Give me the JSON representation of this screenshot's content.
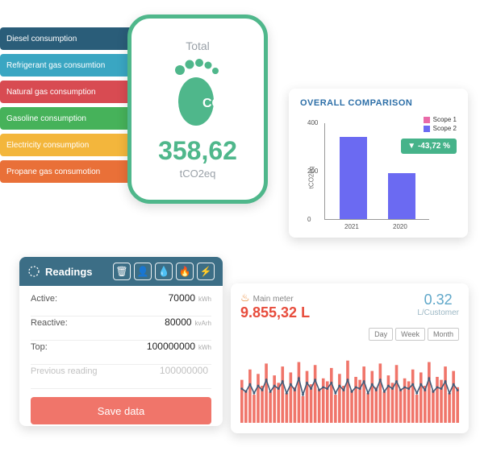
{
  "co2": {
    "total_label": "Total",
    "value": "358,62",
    "unit": "tCO2eq",
    "icon_label": "CO₂",
    "foot_color": "#4fb78b",
    "categories": [
      {
        "label": "Diesel consumption",
        "color": "#2a5d79"
      },
      {
        "label": "Refrigerant gas consumtion",
        "color": "#3aa6c2"
      },
      {
        "label": "Natural gas consumption",
        "color": "#d84b52"
      },
      {
        "label": "Gasoline consumption",
        "color": "#46b25a"
      },
      {
        "label": "Electricity consumption",
        "color": "#f3b63c"
      },
      {
        "label": "Propane gas consumotion",
        "color": "#e97038"
      }
    ]
  },
  "comparison": {
    "title": "OVERALL COMPARISON",
    "ylabel": "tCO2eq",
    "y_ticks": [
      0,
      200,
      400
    ],
    "legend": [
      {
        "label": "Scope 1",
        "color": "#e96aa8"
      },
      {
        "label": "Scope 2",
        "color": "#6b6af2"
      }
    ],
    "delta": "▼ -43,72 %",
    "delta_color": "#46b38a",
    "bars": [
      {
        "x": "2021",
        "value": 340,
        "color": "#6b6af2"
      },
      {
        "x": "2020",
        "value": 190,
        "color": "#6b6af2"
      }
    ],
    "ymax": 400
  },
  "readings": {
    "title": "Readings",
    "icons": [
      "trash-icon",
      "user-icon",
      "water-icon",
      "fire-icon",
      "bolt-icon"
    ],
    "rows": [
      {
        "label": "Active:",
        "value": "70000",
        "unit": "kWh"
      },
      {
        "label": "Reactive:",
        "value": "80000",
        "unit": "kvArh"
      },
      {
        "label": "Top:",
        "value": "100000000",
        "unit": "kWh"
      },
      {
        "label": "Previous reading",
        "value": "100000000",
        "unit": "",
        "muted": true
      }
    ],
    "save_label": "Save data",
    "save_color": "#f0756a"
  },
  "meter": {
    "name": "Main meter",
    "value": "9.855,32 L",
    "per_customer_value": "0.32",
    "per_customer_unit": "L/Customer",
    "ranges": [
      "Day",
      "Week",
      "Month"
    ],
    "bar_color": "#f0756a",
    "line_color": "#425b78",
    "spark_values": [
      58,
      44,
      72,
      38,
      66,
      50,
      80,
      42,
      64,
      54,
      76,
      40,
      68,
      48,
      82,
      36,
      70,
      52,
      78,
      46,
      60,
      56,
      74,
      38,
      66,
      50,
      84,
      44,
      62,
      58,
      76,
      40,
      70,
      48,
      80,
      42,
      64,
      54,
      78,
      46,
      60,
      56,
      72,
      38,
      68,
      50,
      82,
      44,
      62,
      58,
      76,
      40,
      70,
      48
    ],
    "line_values": [
      46,
      42,
      52,
      40,
      50,
      44,
      58,
      42,
      50,
      46,
      56,
      40,
      52,
      44,
      60,
      38,
      54,
      46,
      58,
      44,
      48,
      46,
      54,
      40,
      50,
      44,
      58,
      42,
      48,
      46,
      56,
      40,
      52,
      44,
      58,
      42,
      50,
      46,
      56,
      44,
      48,
      46,
      52,
      40,
      52,
      44,
      60,
      42,
      48,
      46,
      56,
      40,
      52,
      44
    ]
  }
}
